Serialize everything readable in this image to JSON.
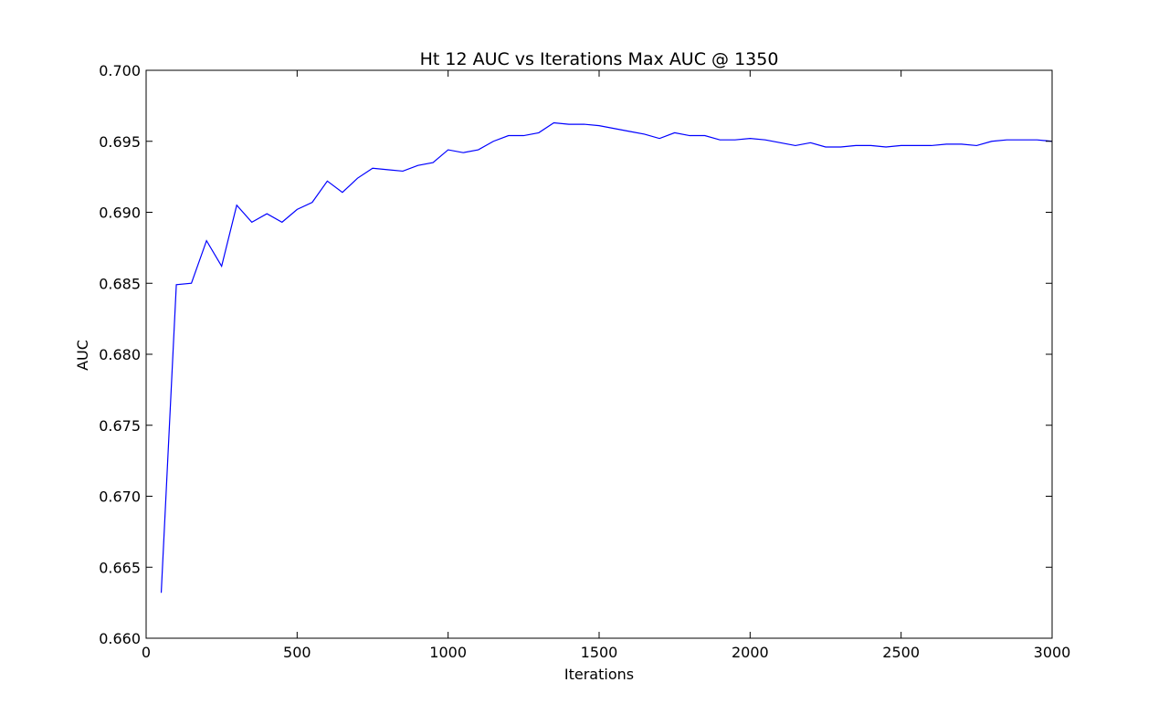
{
  "chart_data": {
    "type": "line",
    "title": "Ht 12 AUC vs Iterations Max AUC @ 1350",
    "xlabel": "Iterations",
    "ylabel": "AUC",
    "xlim": [
      0,
      3000
    ],
    "ylim": [
      0.66,
      0.7
    ],
    "xticks": [
      0,
      500,
      1000,
      1500,
      2000,
      2500,
      3000
    ],
    "yticks": [
      0.66,
      0.665,
      0.67,
      0.675,
      0.68,
      0.685,
      0.69,
      0.695,
      0.7
    ],
    "xtick_labels": [
      "0",
      "500",
      "1000",
      "1500",
      "2000",
      "2500",
      "3000"
    ],
    "ytick_labels": [
      "0.660",
      "0.665",
      "0.670",
      "0.675",
      "0.680",
      "0.685",
      "0.690",
      "0.695",
      "0.700"
    ],
    "grid": false,
    "legend": null,
    "series": [
      {
        "color": "#0000ff",
        "x": [
          50,
          100,
          150,
          200,
          250,
          300,
          350,
          400,
          450,
          500,
          550,
          600,
          650,
          700,
          750,
          800,
          850,
          900,
          950,
          1000,
          1050,
          1100,
          1150,
          1200,
          1250,
          1300,
          1350,
          1400,
          1450,
          1500,
          1550,
          1600,
          1650,
          1700,
          1750,
          1800,
          1850,
          1900,
          1950,
          2000,
          2050,
          2100,
          2150,
          2200,
          2250,
          2300,
          2350,
          2400,
          2450,
          2500,
          2550,
          2600,
          2650,
          2700,
          2750,
          2800,
          2850,
          2900,
          2950,
          3000
        ],
        "values": [
          0.6632,
          0.6849,
          0.685,
          0.688,
          0.6862,
          0.6905,
          0.6893,
          0.6899,
          0.6893,
          0.6902,
          0.6907,
          0.6922,
          0.6914,
          0.6924,
          0.6931,
          0.693,
          0.6929,
          0.6933,
          0.6935,
          0.6944,
          0.6942,
          0.6944,
          0.695,
          0.6954,
          0.6954,
          0.6956,
          0.6963,
          0.6962,
          0.6962,
          0.6961,
          0.6959,
          0.6957,
          0.6955,
          0.6952,
          0.6956,
          0.6954,
          0.6954,
          0.6951,
          0.6951,
          0.6952,
          0.6951,
          0.6949,
          0.6947,
          0.6949,
          0.6946,
          0.6946,
          0.6947,
          0.6947,
          0.6946,
          0.6947,
          0.6947,
          0.6947,
          0.6948,
          0.6948,
          0.6947,
          0.695,
          0.6951,
          0.6951,
          0.6951,
          0.695
        ]
      }
    ]
  }
}
